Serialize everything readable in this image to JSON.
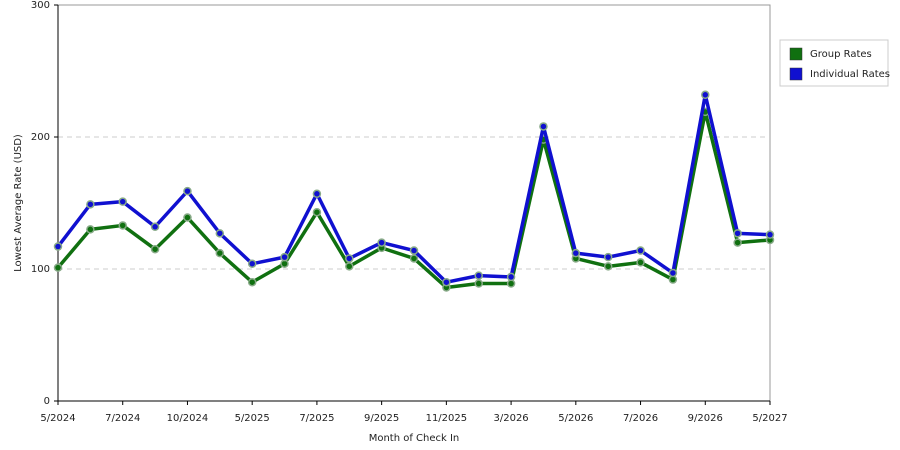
{
  "chart_data": {
    "type": "line",
    "x_label": "Month of Check In",
    "y_label": "Lowest Average Rate (USD)",
    "categories": [
      "5/2024",
      null,
      "7/2024",
      null,
      "10/2024",
      null,
      "5/2025",
      null,
      "7/2025",
      null,
      "9/2025",
      null,
      "11/2025",
      null,
      "3/2026",
      null,
      "5/2026",
      null,
      "7/2026",
      null,
      "9/2026",
      null,
      "5/2027"
    ],
    "series": [
      {
        "name": "Group Rates",
        "color": "#107010",
        "values": [
          101,
          130,
          133,
          115,
          139,
          112,
          90,
          104,
          143,
          102,
          116,
          108,
          86,
          89,
          89,
          198,
          108,
          102,
          105,
          92,
          219,
          120,
          122
        ]
      },
      {
        "name": "Individual Rates",
        "color": "#1010d0",
        "values": [
          117,
          149,
          151,
          132,
          159,
          127,
          104,
          109,
          157,
          108,
          120,
          114,
          90,
          95,
          94,
          208,
          112,
          109,
          114,
          97,
          232,
          127,
          126
        ]
      }
    ],
    "ylim": [
      0,
      300
    ],
    "yticks": [
      0,
      100,
      200,
      300
    ],
    "grid": true,
    "legend": "right"
  }
}
